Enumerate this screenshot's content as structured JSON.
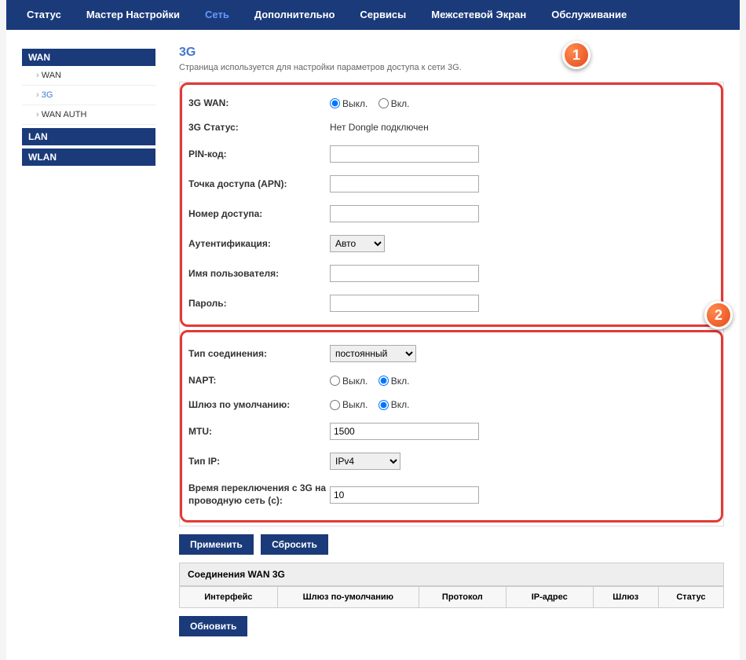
{
  "nav": {
    "items": [
      "Статус",
      "Мастер Настройки",
      "Сеть",
      "Дополнительно",
      "Сервисы",
      "Межсетевой Экран",
      "Обслуживание"
    ],
    "active_index": 2
  },
  "sidebar": {
    "groups": [
      {
        "title": "WAN",
        "items": [
          {
            "label": "WAN",
            "active": false
          },
          {
            "label": "3G",
            "active": true
          },
          {
            "label": "WAN AUTH",
            "active": false
          }
        ]
      },
      {
        "title": "LAN",
        "items": []
      },
      {
        "title": "WLAN",
        "items": []
      }
    ]
  },
  "page": {
    "title": "3G",
    "description": "Страница используется для настройки параметров доступа к сети 3G."
  },
  "section1": {
    "badge": "1",
    "rows": {
      "wan_label": "3G WAN:",
      "wan_off": "Выкл.",
      "wan_on": "Вкл.",
      "status_label": "3G Статус:",
      "status_value": "Нет Dongle подключен",
      "pin_label": "PIN-код:",
      "pin_value": "",
      "apn_label": "Точка доступа (APN):",
      "apn_value": "",
      "dial_label": "Номер доступа:",
      "dial_value": "",
      "auth_label": "Аутентификация:",
      "auth_value": "Авто",
      "user_label": "Имя пользователя:",
      "user_value": "",
      "pass_label": "Пароль:",
      "pass_value": ""
    }
  },
  "section2": {
    "badge": "2",
    "rows": {
      "conn_label": "Тип соединения:",
      "conn_value": "постоянный",
      "napt_label": "NAPT:",
      "napt_off": "Выкл.",
      "napt_on": "Вкл.",
      "gw_label": "Шлюз по умолчанию:",
      "gw_off": "Выкл.",
      "gw_on": "Вкл.",
      "mtu_label": "MTU:",
      "mtu_value": "1500",
      "iptype_label": "Тип IP:",
      "iptype_value": "IPv4",
      "switch_label": "Время переключения с 3G на проводную сеть (с):",
      "switch_value": "10"
    }
  },
  "buttons": {
    "apply": "Применить",
    "reset": "Сбросить",
    "refresh": "Обновить"
  },
  "table": {
    "title": "Соединения WAN 3G",
    "columns": [
      "Интерфейс",
      "Шлюз по-умолчанию",
      "Протокол",
      "IP-адрес",
      "Шлюз",
      "Статус"
    ],
    "col_widths": [
      "18%",
      "26%",
      "16%",
      "16%",
      "12%",
      "12%"
    ]
  },
  "colors": {
    "nav_bg": "#1a3a7a",
    "accent": "#4477cc",
    "highlight_border": "#e53935",
    "badge_gradient_start": "#ff8a50",
    "badge_gradient_end": "#e64a19"
  }
}
